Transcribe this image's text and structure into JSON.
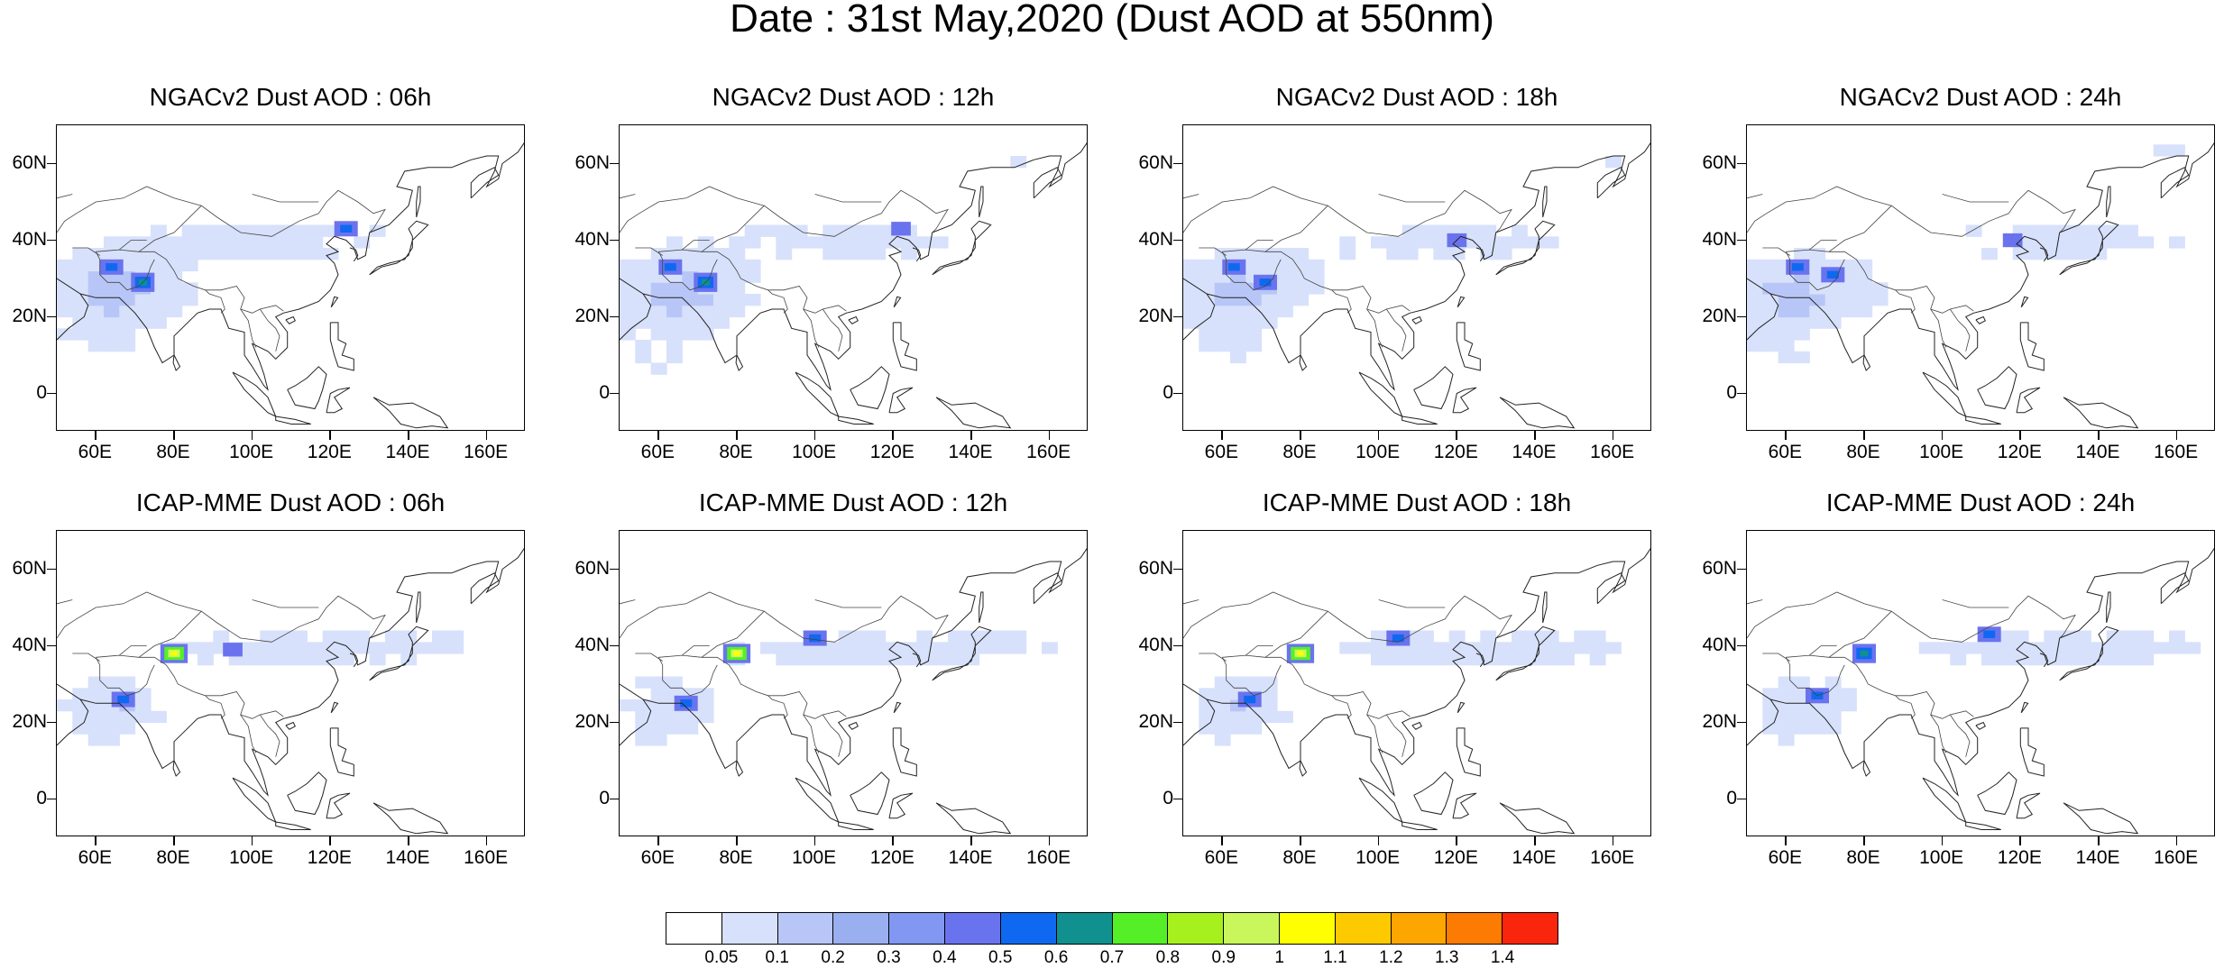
{
  "title": "Date : 31st May,2020 (Dust AOD at 550nm)",
  "panels": [
    {
      "title": "NGACv2 Dust AOD : 06h",
      "model": "NGACv2",
      "hour": "06h",
      "hotspots": [
        [
          72,
          29,
          3
        ],
        [
          64,
          33,
          2
        ],
        [
          124,
          43,
          2
        ]
      ]
    },
    {
      "title": "NGACv2 Dust AOD : 12h",
      "model": "NGACv2",
      "hour": "12h",
      "hotspots": [
        [
          72,
          29,
          3
        ],
        [
          63,
          33,
          2
        ],
        [
          122,
          43,
          1
        ]
      ]
    },
    {
      "title": "NGACv2 Dust AOD : 18h",
      "model": "NGACv2",
      "hour": "18h",
      "hotspots": [
        [
          71,
          29,
          2
        ],
        [
          63,
          33,
          2
        ],
        [
          120,
          40,
          1
        ]
      ]
    },
    {
      "title": "NGACv2 Dust AOD : 24h",
      "model": "NGACv2",
      "hour": "24h",
      "hotspots": [
        [
          72,
          31,
          2
        ],
        [
          63,
          33,
          2
        ],
        [
          118,
          40,
          1
        ]
      ]
    },
    {
      "title": "ICAP-MME Dust AOD : 06h",
      "model": "ICAP-MME",
      "hour": "06h",
      "hotspots": [
        [
          80,
          38,
          4
        ],
        [
          67,
          26,
          2
        ],
        [
          95,
          39,
          1
        ]
      ]
    },
    {
      "title": "ICAP-MME Dust AOD : 12h",
      "model": "ICAP-MME",
      "hour": "12h",
      "hotspots": [
        [
          80,
          38,
          4
        ],
        [
          67,
          25,
          2
        ],
        [
          100,
          42,
          2
        ]
      ]
    },
    {
      "title": "ICAP-MME Dust AOD : 18h",
      "model": "ICAP-MME",
      "hour": "18h",
      "hotspots": [
        [
          80,
          38,
          4
        ],
        [
          67,
          26,
          2
        ],
        [
          105,
          42,
          2
        ]
      ]
    },
    {
      "title": "ICAP-MME Dust AOD : 24h",
      "model": "ICAP-MME",
      "hour": "24h",
      "hotspots": [
        [
          80,
          38,
          3
        ],
        [
          68,
          27,
          2
        ],
        [
          112,
          43,
          2
        ]
      ]
    }
  ],
  "axes": {
    "lon_range": [
      50,
      170
    ],
    "lat_range": [
      -10,
      70
    ],
    "x_ticks": [
      "60E",
      "80E",
      "100E",
      "120E",
      "140E",
      "160E"
    ],
    "x_tick_values": [
      60,
      80,
      100,
      120,
      140,
      160
    ],
    "y_ticks": [
      "60N",
      "40N",
      "20N",
      "0"
    ],
    "y_tick_values": [
      60,
      40,
      20,
      0
    ]
  },
  "colorbar": {
    "labels": [
      "0.05",
      "0.1",
      "0.2",
      "0.3",
      "0.4",
      "0.5",
      "0.6",
      "0.7",
      "0.8",
      "0.9",
      "1",
      "1.1",
      "1.2",
      "1.3",
      "1.4"
    ],
    "colors": [
      "#ffffff",
      "#d7e1fb",
      "#b8c6f7",
      "#9aafef",
      "#8197f2",
      "#6a73ee",
      "#0f69f0",
      "#10908e",
      "#55ef28",
      "#a6f11d",
      "#c9f75b",
      "#ffff00",
      "#fdca00",
      "#fda600",
      "#fc7b02",
      "#fa250d"
    ]
  }
}
